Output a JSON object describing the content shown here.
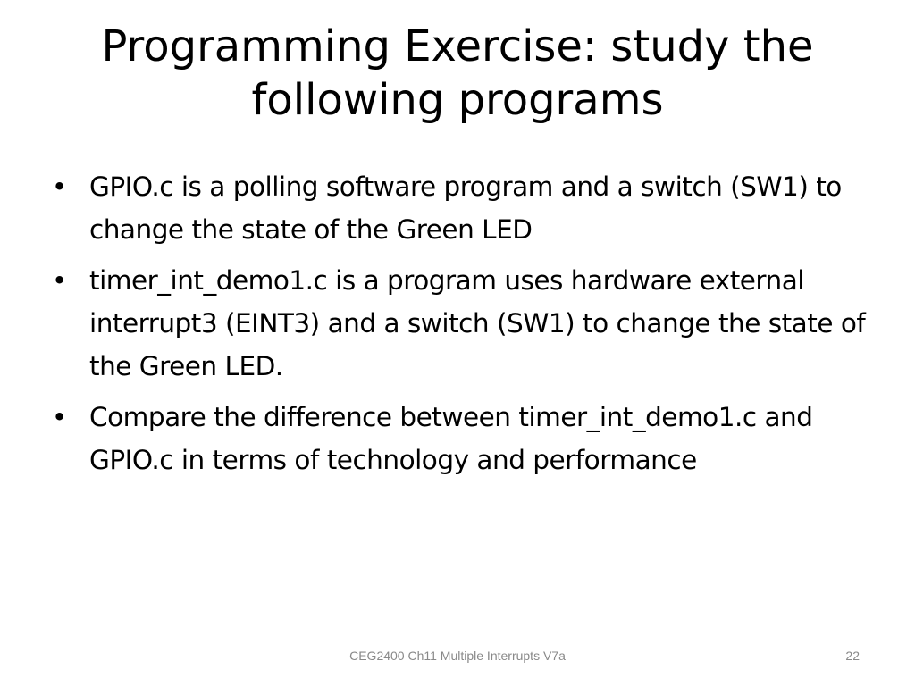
{
  "slide": {
    "title": "Programming Exercise: study the following programs",
    "bullets": [
      {
        "text": "GPIO.c is a polling software program and a switch (SW1) to change the state of the Green LED"
      },
      {
        "text": "timer_int_demo1.c is a program uses hardware external interrupt3 (EINT3) and a switch (SW1) to change the state of the Green LED."
      },
      {
        "text": "Compare the difference between timer_int_demo1.c and GPIO.c in terms of technology and performance"
      }
    ],
    "bullet_glyph": "•",
    "footer": "CEG2400 Ch11 Multiple Interrupts V7a",
    "page_number": "22"
  }
}
